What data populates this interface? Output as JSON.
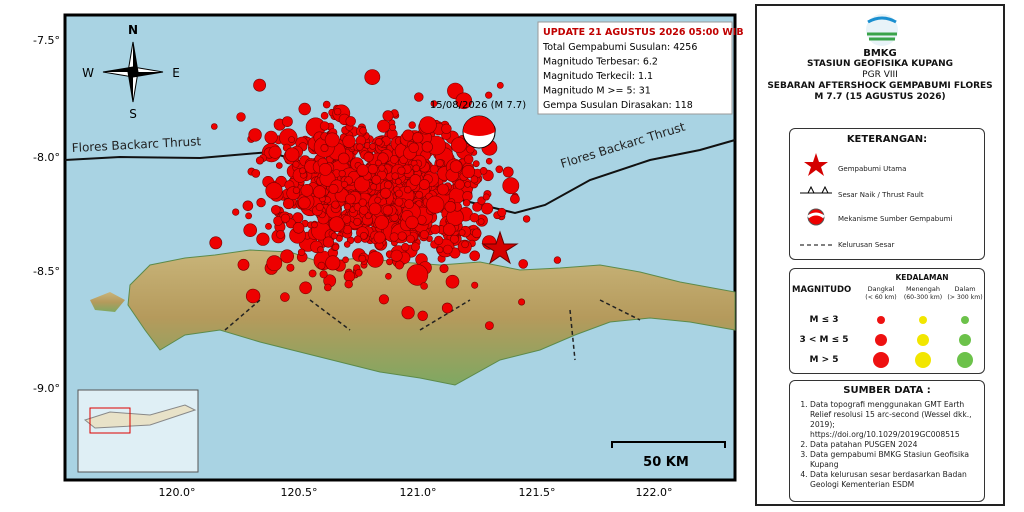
{
  "map": {
    "lat_labels": [
      "-7.5°",
      "-8.0°",
      "-8.5°",
      "-9.0°"
    ],
    "lon_labels": [
      "120.0°",
      "120.5°",
      "121.0°",
      "121.5°",
      "122.0°"
    ],
    "compass": {
      "n": "N",
      "e": "E",
      "s": "S",
      "w": "W"
    },
    "fault_labels": [
      "Flores Backarc Thrust",
      "Flores Backarc Thrust"
    ],
    "info": {
      "update": "UPDATE 21 AGUSTUS 2026 05:00 WIB",
      "lines": [
        "Total Gempabumi Susulan: 4256",
        "Magnitudo Terbesar: 6.2",
        "Magnitudo Terkecil: 1.1",
        "Magnitudo M >= 5: 31",
        "Gempa Susulan Dirasakan: 118"
      ]
    },
    "mainshock_label": "15/08/2026 (M 7.7)",
    "scale_label": "50 KM"
  },
  "panel": {
    "logo": "BMKG",
    "station": "STASIUN GEOFISIKA KUPANG",
    "region": "PGR VIII",
    "title": "SEBARAN AFTERSHOCK GEMPABUMI FLORES",
    "subtitle": "M 7.7 (15 AGUSTUS 2026)",
    "legend": {
      "heading": "KETERANGAN:",
      "items": [
        "Gempabumi Utama",
        "Sesar Naik / Thrust Fault",
        "Mekanisme Sumber Gempabumi",
        "Kelurusan Sesar"
      ]
    },
    "magnitude": {
      "heading": "MAGNITUDO",
      "depth_heading": "KEDALAMAN",
      "depths": [
        {
          "name": "Dangkal",
          "range": "(< 60 km)"
        },
        {
          "name": "Menengah",
          "range": "(60-300 km)"
        },
        {
          "name": "Dalam",
          "range": "(> 300 km)"
        }
      ],
      "rows": [
        "M ≤ 3",
        "3 < M ≤ 5",
        "M > 5"
      ]
    },
    "sources": {
      "heading": "SUMBER DATA :",
      "items": [
        "Data topografi menggunakan GMT Earth Relief resolusi 15 arc-second (Wessel dkk., 2019); https://doi.org/10.1029/2019GC008515",
        "Data patahan PUSGEN 2024",
        "Data gempabumi BMKG Stasiun Geofisika Kupang",
        "Data kelurusan sesar berdasarkan Badan Geologi Kementerian ESDM"
      ]
    }
  }
}
